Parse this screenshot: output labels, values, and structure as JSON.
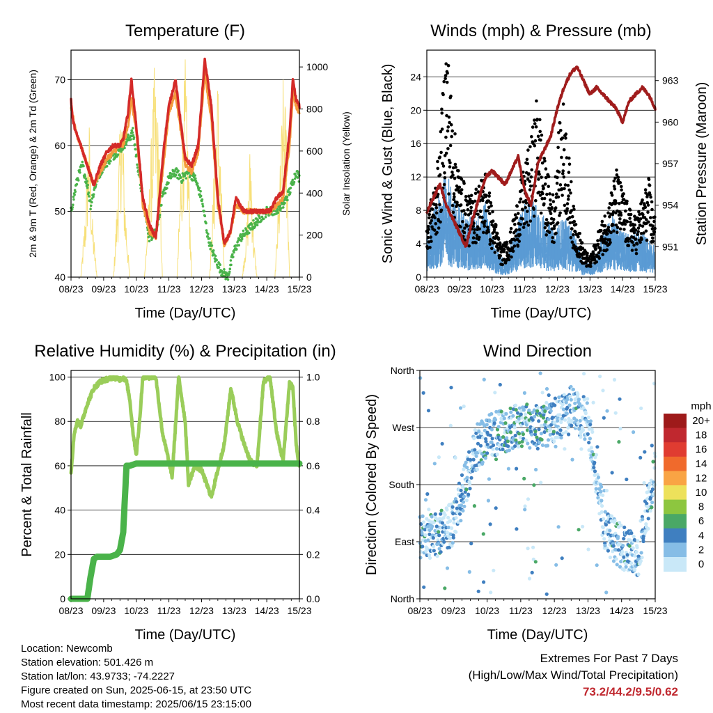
{
  "chart_data": [
    {
      "type": "line",
      "title": "Temperature (F)",
      "xlabel": "Time (Day/UTC)",
      "ylabel": "2m & 9m T (Red, Orange) & 2m Td (Green)",
      "ylabel_right": "Solar Insolation (Yellow)",
      "x_ticks": [
        "08/23",
        "09/23",
        "10/23",
        "11/23",
        "12/23",
        "13/23",
        "14/23",
        "15/23"
      ],
      "y_ticks": [
        "40",
        "50",
        "60",
        "70"
      ],
      "y2_ticks": [
        "0",
        "200",
        "400",
        "600",
        "800",
        "1000"
      ],
      "ylim": [
        40,
        74.5
      ],
      "y2lim": [
        0,
        1080
      ],
      "grid": true,
      "colors": {
        "temp_2m": "#d42a28",
        "temp_9m": "#f39a3c",
        "dewpoint": "#4ab34a",
        "solar": "#f7e07a"
      },
      "series": [
        {
          "key": "temp_2m",
          "x": [
            0,
            0.05,
            0.15,
            0.3,
            0.5,
            0.7,
            0.9,
            1.1,
            1.3,
            1.5,
            1.6,
            1.75,
            1.85,
            2.0,
            2.2,
            2.4,
            2.6,
            2.85,
            3.0,
            3.2,
            3.4,
            3.5,
            3.7,
            3.9,
            4.1,
            4.3,
            4.5,
            4.7,
            4.9,
            5.05,
            5.3,
            5.5,
            5.7,
            5.9,
            6.1,
            6.3,
            6.5,
            6.7,
            6.8,
            6.9,
            7.0
          ],
          "values": [
            67,
            64,
            62,
            60,
            57,
            54,
            57,
            59,
            60,
            60,
            61,
            65,
            70,
            63,
            52,
            48,
            46,
            60,
            66,
            70,
            62,
            58,
            57,
            60,
            73,
            66,
            52,
            45,
            47,
            52,
            50,
            50,
            50,
            50,
            50,
            52,
            53,
            62,
            70,
            67,
            66
          ]
        },
        {
          "key": "temp_9m",
          "x": [
            0,
            0.15,
            0.3,
            0.5,
            0.7,
            0.9,
            1.1,
            1.3,
            1.5,
            1.6,
            1.75,
            1.85,
            2.0,
            2.2,
            2.4,
            2.6,
            2.85,
            3.0,
            3.2,
            3.4,
            3.5,
            3.7,
            3.9,
            4.1,
            4.3,
            4.5,
            4.7,
            4.9,
            5.05,
            5.3,
            5.5,
            5.7,
            5.9,
            6.1,
            6.3,
            6.5,
            6.7,
            6.8,
            6.9,
            7.0
          ],
          "values": [
            66,
            62,
            60,
            57,
            54,
            56,
            58,
            59,
            60,
            60,
            63,
            67,
            62,
            51,
            47,
            46,
            58,
            65,
            68,
            61,
            57,
            56,
            59,
            71,
            64,
            51,
            45,
            47,
            51,
            50,
            50,
            50,
            50,
            50,
            51,
            52,
            60,
            68,
            66,
            65
          ]
        },
        {
          "key": "dewpoint",
          "x": [
            0,
            0.2,
            0.35,
            0.5,
            0.6,
            0.8,
            1.0,
            1.2,
            1.4,
            1.6,
            1.75,
            1.9,
            2.1,
            2.3,
            2.4,
            2.6,
            2.8,
            3.0,
            3.2,
            3.4,
            3.6,
            3.8,
            4.0,
            4.2,
            4.4,
            4.6,
            4.8,
            5.0,
            5.2,
            5.4,
            5.6,
            5.8,
            6.0,
            6.2,
            6.5,
            6.7,
            6.9,
            7.0
          ],
          "values": [
            50,
            55,
            57,
            54,
            51,
            55,
            57,
            58,
            59,
            60,
            61,
            62,
            55,
            49,
            46,
            47,
            52,
            55,
            56,
            55,
            56,
            55,
            52,
            46,
            43,
            41,
            40,
            44,
            46,
            47,
            48,
            49,
            50,
            50,
            51,
            53,
            56,
            55
          ]
        },
        {
          "key": "solar",
          "x": [
            0.3,
            0.45,
            0.55,
            0.65,
            0.8,
            1.3,
            1.45,
            1.55,
            1.65,
            1.8,
            2.25,
            2.4,
            2.55,
            2.7,
            2.8,
            3.25,
            3.4,
            3.5,
            3.6,
            3.7,
            4.25,
            4.4,
            4.5,
            4.6,
            4.7,
            5.25,
            5.4,
            5.5,
            5.6,
            5.7,
            6.25,
            6.4,
            6.5,
            6.6,
            6.7
          ],
          "values": [
            0,
            350,
            800,
            300,
            0,
            0,
            500,
            950,
            400,
            0,
            0,
            450,
            1000,
            700,
            0,
            0,
            700,
            1050,
            600,
            0,
            0,
            600,
            1000,
            500,
            0,
            0,
            300,
            700,
            200,
            0,
            0,
            500,
            950,
            800,
            0
          ]
        }
      ]
    },
    {
      "type": "line",
      "title": "Winds (mph) & Pressure (mb)",
      "xlabel": "Time (Day/UTC)",
      "ylabel": "Sonic Wind & Gust (Blue, Black)",
      "ylabel_right": "Station Pressure (Maroon)",
      "x_ticks": [
        "08/23",
        "09/23",
        "10/23",
        "11/23",
        "12/23",
        "13/23",
        "14/23",
        "15/23"
      ],
      "y_ticks": [
        "0",
        "4",
        "8",
        "12",
        "16",
        "20",
        "24"
      ],
      "y2_ticks": [
        "951",
        "954",
        "957",
        "960",
        "963"
      ],
      "ylim": [
        0,
        27.2
      ],
      "y2lim": [
        948.8,
        965.2
      ],
      "grid": true,
      "colors": {
        "wind": "#5a9bd4",
        "gust": "#000000",
        "pressure": "#a01c1c"
      },
      "series": [
        {
          "key": "wind",
          "x": [
            0,
            0.3,
            0.6,
            0.9,
            1.2,
            1.5,
            1.8,
            2.1,
            2.4,
            2.7,
            3.0,
            3.3,
            3.6,
            3.9,
            4.2,
            4.5,
            4.8,
            5.1,
            5.4,
            5.7,
            6.0,
            6.3,
            6.6,
            7.0
          ],
          "values": [
            3,
            5,
            7,
            5,
            4,
            4,
            5,
            2,
            1,
            3,
            5,
            5,
            4,
            3,
            4,
            3,
            1,
            1,
            3,
            4,
            3,
            3,
            3,
            2
          ]
        },
        {
          "key": "gust",
          "x": [
            0,
            0.2,
            0.4,
            0.5,
            0.6,
            0.8,
            1.0,
            1.3,
            1.5,
            1.8,
            2.0,
            2.3,
            2.6,
            2.9,
            3.2,
            3.4,
            3.6,
            3.9,
            4.0,
            4.2,
            4.5,
            4.8,
            5.0,
            5.3,
            5.6,
            5.8,
            6.0,
            6.2,
            6.4,
            6.6,
            6.8,
            7.0
          ],
          "values": [
            6,
            9,
            13,
            20,
            25,
            16,
            11,
            8,
            9,
            11,
            7,
            3,
            5,
            10,
            14,
            19,
            12,
            8,
            14,
            18,
            7,
            3,
            2,
            5,
            8,
            11,
            9,
            7,
            6,
            8,
            10,
            6
          ]
        },
        {
          "key": "pressure",
          "x": [
            0,
            0.2,
            0.4,
            0.6,
            0.8,
            1.0,
            1.2,
            1.4,
            1.6,
            1.8,
            2.0,
            2.2,
            2.4,
            2.6,
            2.8,
            3.0,
            3.2,
            3.4,
            3.6,
            3.8,
            4.0,
            4.2,
            4.4,
            4.6,
            4.8,
            5.0,
            5.2,
            5.4,
            5.6,
            5.8,
            6.0,
            6.2,
            6.4,
            6.6,
            6.8,
            7.0
          ],
          "values": [
            953.5,
            954.5,
            955.5,
            954.0,
            953.0,
            952.0,
            951.0,
            953.0,
            954.5,
            956.0,
            956.5,
            956.0,
            955.5,
            956.5,
            957.5,
            955.0,
            954.0,
            957.0,
            958.0,
            959.0,
            961.0,
            962.5,
            963.5,
            964.0,
            963.0,
            962.0,
            962.5,
            962.0,
            961.5,
            961.0,
            960.0,
            961.5,
            962.0,
            962.5,
            962.0,
            961.0
          ]
        }
      ]
    },
    {
      "type": "line",
      "title": "Relative Humidity (%) & Precipitation (in)",
      "xlabel": "Time (Day/UTC)",
      "ylabel": "Percent & Total Rainfall",
      "x_ticks": [
        "08/23",
        "09/23",
        "10/23",
        "11/23",
        "12/23",
        "13/23",
        "14/23",
        "15/23"
      ],
      "y_ticks": [
        "0",
        "20",
        "40",
        "60",
        "80",
        "100"
      ],
      "y2_ticks": [
        "0.0",
        "0.2",
        "0.4",
        "0.6",
        "0.8",
        "1.0"
      ],
      "ylim": [
        0,
        103
      ],
      "y2lim": [
        0,
        1.03
      ],
      "grid": true,
      "colors": {
        "rh": "#9acd5a",
        "precip": "#4ab34a"
      },
      "series": [
        {
          "key": "rh",
          "x": [
            0,
            0.1,
            0.2,
            0.3,
            0.5,
            0.7,
            0.9,
            1.1,
            1.3,
            1.5,
            1.6,
            1.7,
            1.8,
            1.9,
            2.0,
            2.1,
            2.2,
            2.4,
            2.6,
            2.8,
            3.0,
            3.1,
            3.3,
            3.5,
            3.6,
            3.8,
            4.0,
            4.2,
            4.3,
            4.5,
            4.7,
            4.9,
            5.1,
            5.3,
            5.5,
            5.7,
            5.9,
            6.1,
            6.3,
            6.5,
            6.7,
            6.8,
            6.9,
            7.0
          ],
          "values": [
            57,
            75,
            80,
            78,
            88,
            95,
            98,
            99,
            100,
            99,
            100,
            98,
            90,
            75,
            65,
            80,
            100,
            100,
            100,
            75,
            62,
            55,
            100,
            80,
            52,
            60,
            58,
            50,
            46,
            58,
            70,
            95,
            80,
            70,
            62,
            60,
            98,
            100,
            75,
            62,
            98,
            95,
            70,
            58
          ]
        },
        {
          "key": "precip",
          "x": [
            0,
            0.2,
            0.5,
            0.6,
            0.7,
            0.8,
            1.0,
            1.2,
            1.4,
            1.5,
            1.6,
            1.65,
            1.7,
            1.8,
            2.0,
            3.0,
            4.0,
            5.0,
            6.0,
            7.0
          ],
          "values": [
            0.0,
            0.0,
            0.0,
            0.1,
            0.18,
            0.19,
            0.19,
            0.19,
            0.2,
            0.22,
            0.3,
            0.45,
            0.6,
            0.6,
            0.61,
            0.61,
            0.61,
            0.61,
            0.61,
            0.61
          ]
        }
      ]
    },
    {
      "type": "scatter",
      "title": "Wind Direction",
      "xlabel": "Time (Day/UTC)",
      "ylabel": "Direction (Colored By Speed)",
      "x_ticks": [
        "08/23",
        "09/23",
        "10/23",
        "11/23",
        "12/23",
        "13/23",
        "14/23",
        "15/23"
      ],
      "y_ticks": [
        "North",
        "East",
        "South",
        "West",
        "North"
      ],
      "ylim": [
        0,
        360
      ],
      "grid": true,
      "legend": {
        "title": "mph",
        "labels": [
          "20+",
          "18",
          "16",
          "14",
          "12",
          "10",
          "8",
          "6",
          "4",
          "2",
          "0"
        ],
        "colors": [
          "#9e1a1a",
          "#c0282f",
          "#e03c31",
          "#f06a2c",
          "#f9a444",
          "#ede15b",
          "#8dc63f",
          "#4aa866",
          "#3f7fc0",
          "#86bde6",
          "#c9e8f8"
        ]
      }
    }
  ],
  "info": {
    "location": "Location: Newcomb",
    "elevation": "Station elevation: 501.426 m",
    "latlon": "Station lat/lon: 43.9733; -74.2227",
    "created": "Figure created on Sun, 2025-06-15, at 23:50 UTC",
    "recent": "Most recent data timestamp: 2025/06/15 23:15:00"
  },
  "extremes": {
    "title": "Extremes For Past 7 Days",
    "subtitle": "(High/Low/Max Wind/Total Precipitation)",
    "values": "73.2/44.2/9.5/0.62"
  }
}
